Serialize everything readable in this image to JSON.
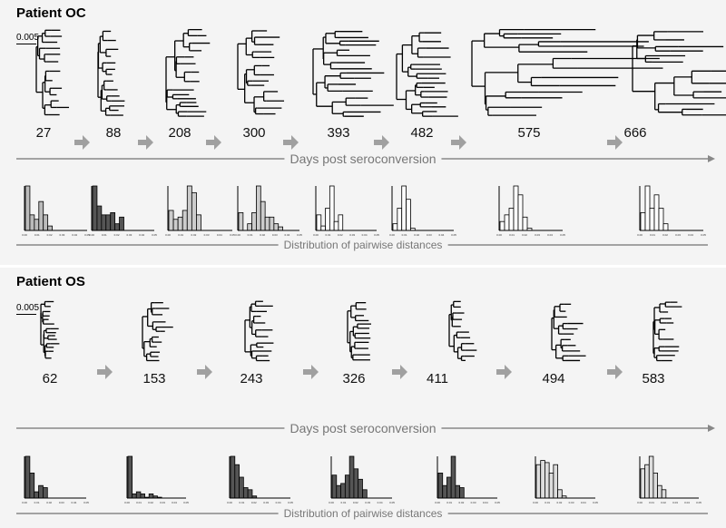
{
  "panels": [
    {
      "title": "Patient OC",
      "scale_label": "0.005",
      "days": [
        "27",
        "88",
        "208",
        "300",
        "393",
        "482",
        "575",
        "666"
      ],
      "time_axis_label": "Days post seroconversion",
      "dist_label": "Distribution of pairwise distances",
      "hist_x_ticks": [
        "0.00",
        "0.01",
        "0.02",
        "0.03",
        "0.04",
        "0.05"
      ],
      "histograms": [
        {
          "bars": [
            1.0,
            0.35,
            0.25,
            0.65,
            0.35,
            0.1
          ],
          "fill": "#bbbbbb"
        },
        {
          "bars": [
            1.0,
            0.55,
            0.35,
            0.35,
            0.4,
            0.15,
            0.3
          ],
          "fill": "#555555"
        },
        {
          "bars": [
            0.45,
            0.25,
            0.3,
            0.45,
            1.0,
            0.85,
            0.35
          ],
          "fill": "#cccccc"
        },
        {
          "bars": [
            0.4,
            0.0,
            0.15,
            0.4,
            1.0,
            0.65,
            0.3,
            0.3,
            0.15,
            0.08
          ],
          "fill": "#cccccc"
        },
        {
          "bars": [
            0.35,
            0.1,
            0.5,
            1.0,
            0.2,
            0.35
          ],
          "fill": "#ffffff"
        },
        {
          "bars": [
            0.15,
            0.5,
            1.0,
            0.7,
            0.05
          ],
          "fill": "#ffffff"
        },
        {
          "bars": [
            0.2,
            0.35,
            0.5,
            1.0,
            0.8,
            0.3,
            0.05
          ],
          "fill": "#ffffff"
        },
        {
          "bars": [
            0.4,
            1.0,
            0.5,
            0.8,
            0.5,
            0.15
          ],
          "fill": "#ffffff"
        }
      ]
    },
    {
      "title": "Patient OS",
      "scale_label": "0.005",
      "days": [
        "62",
        "153",
        "243",
        "326",
        "411",
        "494",
        "583"
      ],
      "time_axis_label": "Days post seroconversion",
      "dist_label": "Distribution of pairwise distances",
      "hist_x_ticks": [
        "0.00",
        "0.01",
        "0.02",
        "0.03",
        "0.04",
        "0.05"
      ],
      "histograms": [
        {
          "bars": [
            1.0,
            0.6,
            0.15,
            0.3,
            0.25
          ],
          "fill": "#555555"
        },
        {
          "bars": [
            1.0,
            0.1,
            0.15,
            0.1,
            0.02,
            0.1,
            0.05,
            0.02
          ],
          "fill": "#555555"
        },
        {
          "bars": [
            1.0,
            0.8,
            0.5,
            0.25,
            0.2,
            0.05
          ],
          "fill": "#555555"
        },
        {
          "bars": [
            0.55,
            0.3,
            0.35,
            0.55,
            1.0,
            0.7,
            0.45,
            0.2
          ],
          "fill": "#555555"
        },
        {
          "bars": [
            0.6,
            0.3,
            0.5,
            1.0,
            0.3,
            0.25
          ],
          "fill": "#555555"
        },
        {
          "bars": [
            0.8,
            0.9,
            0.85,
            0.6,
            0.8,
            0.2,
            0.05
          ],
          "fill": "#dddddd"
        },
        {
          "bars": [
            0.7,
            0.8,
            1.0,
            0.6,
            0.3,
            0.2
          ],
          "fill": "#dddddd"
        }
      ]
    }
  ],
  "colors": {
    "arrow": "#a0a0a0",
    "axis": "#888888",
    "text_muted": "#777777"
  }
}
